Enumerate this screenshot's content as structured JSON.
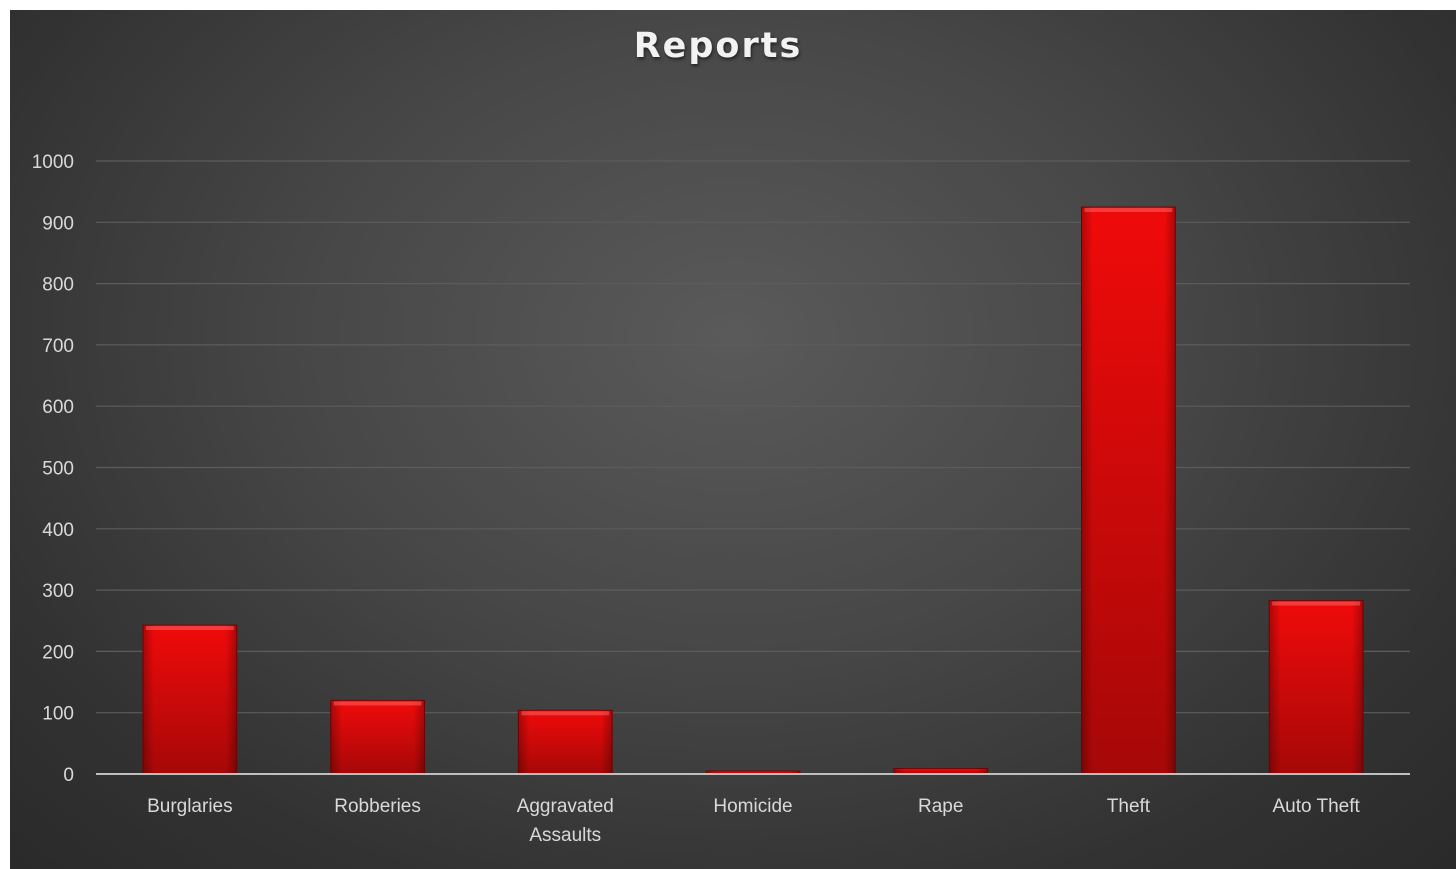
{
  "chart_data": {
    "type": "bar",
    "title": "Reports",
    "xlabel": "",
    "ylabel": "",
    "categories": [
      [
        "Burglaries"
      ],
      [
        "Robberies"
      ],
      [
        "Aggravated",
        "Assaults"
      ],
      [
        "Homicide"
      ],
      [
        "Rape"
      ],
      [
        "Theft"
      ],
      [
        "Auto Theft"
      ]
    ],
    "values": [
      243,
      120,
      104,
      5,
      9,
      925,
      283
    ],
    "ylim": [
      0,
      1000
    ],
    "yticks": [
      "0",
      "100",
      "200",
      "300",
      "400",
      "500",
      "600",
      "700",
      "800",
      "900",
      "1000"
    ],
    "grid": true,
    "legend": "none",
    "colors": {
      "bar_top": "#f00a0a",
      "bar_bottom": "#a60808",
      "bar_edge": "#7a0505",
      "gridline": "#5c5c5c",
      "axis": "#bfbfbf",
      "text": "#d9d9d9"
    }
  }
}
